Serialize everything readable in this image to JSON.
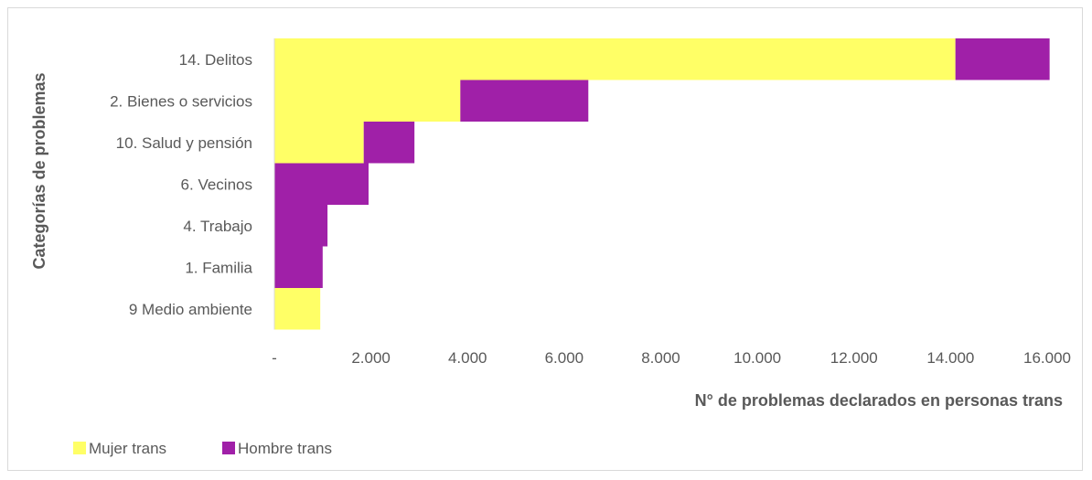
{
  "chart_data": {
    "type": "bar",
    "orientation": "horizontal",
    "stacked": true,
    "categories": [
      "14. Delitos",
      "2. Bienes o servicios",
      "10. Salud y pensión",
      "6. Vecinos",
      "4. Trabajo",
      "1. Familia",
      "9 Medio ambiente"
    ],
    "series": [
      {
        "name": "Mujer trans",
        "color": "#FFFF66",
        "values": [
          14100,
          3850,
          1850,
          0,
          0,
          0,
          950
        ]
      },
      {
        "name": "Hombre trans",
        "color": "#A020A8",
        "values": [
          1950,
          2650,
          1050,
          1950,
          1100,
          1000,
          0
        ]
      }
    ],
    "xlim": [
      0,
      16000
    ],
    "xticks": [
      0,
      2000,
      4000,
      6000,
      8000,
      10000,
      12000,
      14000,
      16000
    ],
    "xtick_labels": [
      "-",
      "2.000",
      "4.000",
      "6.000",
      "8.000",
      "10.000",
      "12.000",
      "14.000",
      "16.000"
    ],
    "xlabel": "N° de problemas declarados en personas trans",
    "ylabel": "Categorías de problemas",
    "grid": false,
    "legend": "bottom-left"
  }
}
